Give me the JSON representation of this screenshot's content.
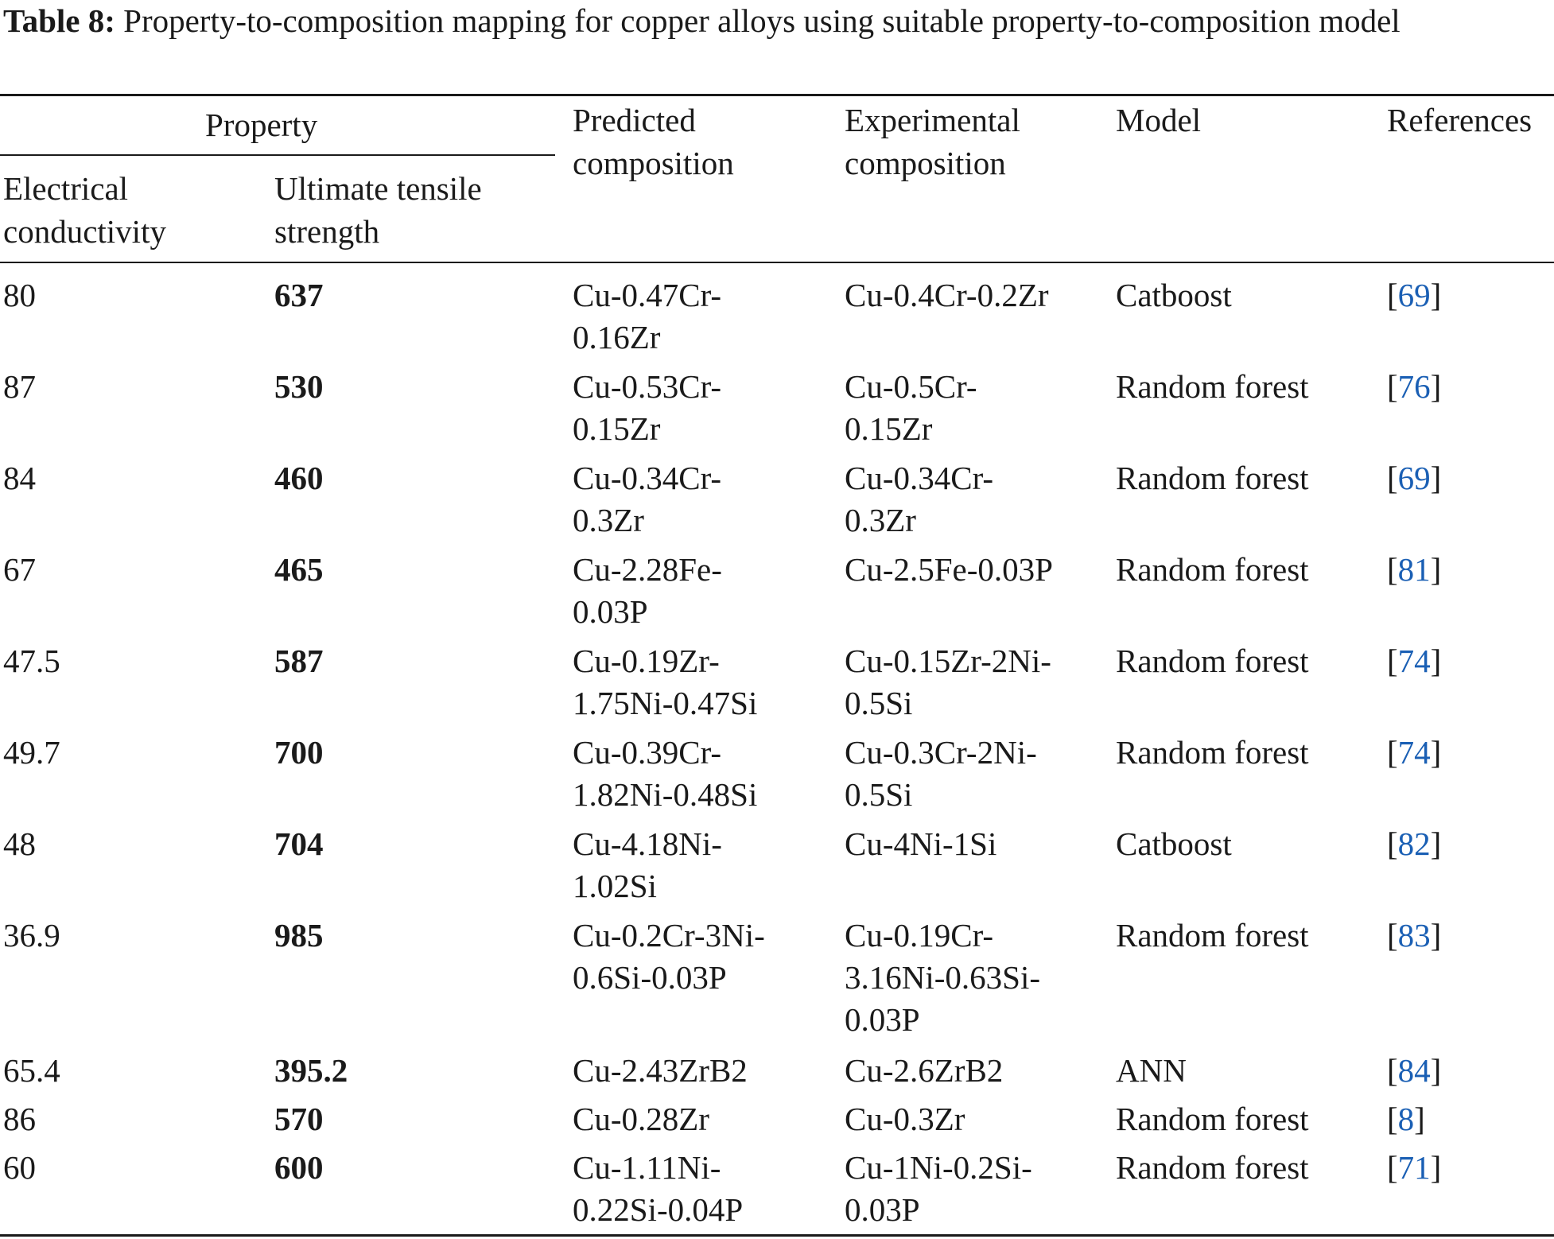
{
  "caption": {
    "label": "Table 8:",
    "text": "Property-to-composition mapping for copper alloys using suitable property-to-composition model"
  },
  "header": {
    "property_group": "Property",
    "electrical_line1": "Electrical",
    "electrical_line2": "conductivity",
    "uts_line1": "Ultimate tensile",
    "uts_line2": "strength",
    "predicted_line1": "Predicted",
    "predicted_line2": "composition",
    "experimental_line1": "Experimental",
    "experimental_line2": "composition",
    "model": "Model",
    "references": "References"
  },
  "rows": [
    {
      "ec": "80",
      "uts": "637",
      "pred": [
        "Cu-0.47Cr-",
        "0.16Zr"
      ],
      "exp": [
        "Cu-0.4Cr-0.2Zr"
      ],
      "model": "Catboost",
      "ref_open": "[",
      "ref": "69",
      "ref_close": "]"
    },
    {
      "ec": "87",
      "uts": "530",
      "pred": [
        "Cu-0.53Cr-",
        "0.15Zr"
      ],
      "exp": [
        "Cu-0.5Cr-",
        "0.15Zr"
      ],
      "model": "Random forest",
      "ref_open": "[",
      "ref": "76",
      "ref_close": "]"
    },
    {
      "ec": "84",
      "uts": "460",
      "pred": [
        "Cu-0.34Cr-",
        "0.3Zr"
      ],
      "exp": [
        "Cu-0.34Cr-",
        "0.3Zr"
      ],
      "model": "Random forest",
      "ref_open": "[",
      "ref": "69",
      "ref_close": "]"
    },
    {
      "ec": "67",
      "uts": "465",
      "pred": [
        "Cu-2.28Fe-",
        "0.03P"
      ],
      "exp": [
        "Cu-2.5Fe-0.03P"
      ],
      "model": "Random forest",
      "ref_open": "[",
      "ref": "81",
      "ref_close": "]"
    },
    {
      "ec": "47.5",
      "uts": "587",
      "pred": [
        "Cu-0.19Zr-",
        "1.75Ni-0.47Si"
      ],
      "exp": [
        "Cu-0.15Zr-2Ni-",
        "0.5Si"
      ],
      "model": "Random forest",
      "ref_open": "[",
      "ref": "74",
      "ref_close": "]"
    },
    {
      "ec": "49.7",
      "uts": "700",
      "pred": [
        "Cu-0.39Cr-",
        "1.82Ni-0.48Si"
      ],
      "exp": [
        "Cu-0.3Cr-2Ni-",
        "0.5Si"
      ],
      "model": "Random forest",
      "ref_open": "[",
      "ref": "74",
      "ref_close": "]"
    },
    {
      "ec": "48",
      "uts": "704",
      "pred": [
        "Cu-4.18Ni-",
        "1.02Si"
      ],
      "exp": [
        "Cu-4Ni-1Si"
      ],
      "model": "Catboost",
      "ref_open": "[",
      "ref": "82",
      "ref_close": "]"
    },
    {
      "ec": "36.9",
      "uts": "985",
      "pred": [
        "Cu-0.2Cr-3Ni-",
        "0.6Si-0.03P"
      ],
      "exp": [
        "Cu-0.19Cr-",
        "3.16Ni-0.63Si-",
        "0.03P"
      ],
      "model": "Random forest",
      "ref_open": "[",
      "ref": "83",
      "ref_close": "]"
    },
    {
      "ec": "65.4",
      "uts": "395.2",
      "pred": [
        "Cu-2.43ZrB2"
      ],
      "exp": [
        "Cu-2.6ZrB2"
      ],
      "model": "ANN",
      "ref_open": "[",
      "ref": "84",
      "ref_close": "]"
    },
    {
      "ec": "86",
      "uts": "570",
      "pred": [
        "Cu-0.28Zr"
      ],
      "exp": [
        "Cu-0.3Zr"
      ],
      "model": "Random forest",
      "ref_open": "[",
      "ref": "8",
      "ref_close": "]"
    },
    {
      "ec": "60",
      "uts": "600",
      "pred": [
        "Cu-1.11Ni-",
        "0.22Si-0.04P"
      ],
      "exp": [
        "Cu-1Ni-0.2Si-",
        "0.03P"
      ],
      "model": "Random forest",
      "ref_open": "[",
      "ref": "71",
      "ref_close": "]"
    }
  ]
}
